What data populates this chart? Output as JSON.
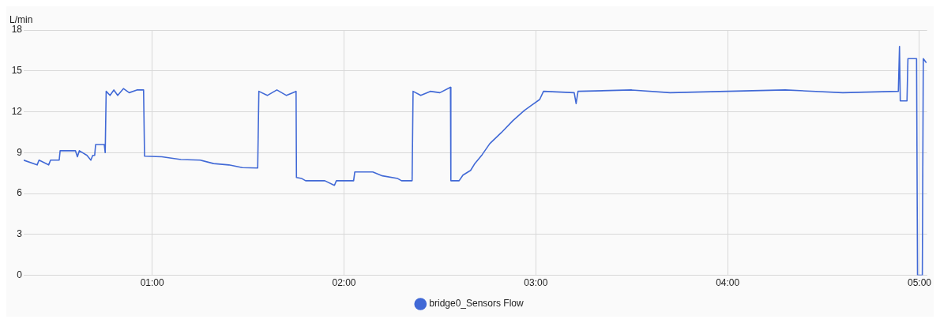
{
  "chart_data": {
    "type": "line",
    "ylabel": "L/min",
    "legend": "bottom",
    "grid": true,
    "marker": "none",
    "line_style": "solid",
    "xlim": [
      0.33,
      5.04
    ],
    "ylim": [
      0,
      18
    ],
    "xticks": [
      {
        "value": 1,
        "label": "01:00"
      },
      {
        "value": 2,
        "label": "02:00"
      },
      {
        "value": 3,
        "label": "03:00"
      },
      {
        "value": 4,
        "label": "04:00"
      },
      {
        "value": 5,
        "label": "05:00"
      }
    ],
    "yticks": [
      0,
      3,
      6,
      9,
      12,
      15,
      18
    ],
    "series": [
      {
        "name": "bridge0_Sensors Flow",
        "color": "#4169d6",
        "x": [
          0.33,
          0.4,
          0.41,
          0.46,
          0.47,
          0.515,
          0.52,
          0.6,
          0.61,
          0.62,
          0.66,
          0.68,
          0.69,
          0.7,
          0.705,
          0.75,
          0.755,
          0.76,
          0.78,
          0.8,
          0.82,
          0.85,
          0.88,
          0.92,
          0.955,
          0.96,
          1.05,
          1.15,
          1.25,
          1.32,
          1.4,
          1.47,
          1.55,
          1.556,
          1.6,
          1.65,
          1.7,
          1.75,
          1.752,
          1.78,
          1.8,
          1.9,
          1.95,
          1.96,
          2.05,
          2.056,
          2.15,
          2.2,
          2.28,
          2.3,
          2.355,
          2.36,
          2.4,
          2.45,
          2.5,
          2.555,
          2.557,
          2.6,
          2.62,
          2.66,
          2.68,
          2.72,
          2.76,
          2.82,
          2.88,
          2.94,
          2.98,
          3.02,
          3.04,
          3.2,
          3.21,
          3.22,
          3.5,
          3.7,
          4.0,
          4.3,
          4.6,
          4.89,
          4.896,
          4.9,
          4.935,
          4.94,
          4.985,
          4.99,
          5.015,
          5.02,
          5.036
        ],
        "values": [
          8.45,
          8.1,
          8.45,
          8.1,
          8.45,
          8.45,
          9.14,
          9.14,
          8.7,
          9.14,
          8.8,
          8.45,
          8.8,
          8.8,
          9.6,
          9.6,
          9.0,
          13.5,
          13.2,
          13.6,
          13.2,
          13.7,
          13.4,
          13.6,
          13.6,
          8.74,
          8.7,
          8.5,
          8.45,
          8.2,
          8.1,
          7.9,
          7.87,
          13.5,
          13.2,
          13.6,
          13.2,
          13.5,
          7.18,
          7.1,
          6.94,
          6.94,
          6.6,
          6.94,
          6.94,
          7.58,
          7.58,
          7.3,
          7.1,
          6.94,
          6.94,
          13.5,
          13.2,
          13.5,
          13.4,
          13.8,
          6.94,
          6.94,
          7.35,
          7.7,
          8.16,
          8.85,
          9.66,
          10.47,
          11.34,
          12.1,
          12.5,
          12.9,
          13.5,
          13.4,
          12.6,
          13.5,
          13.6,
          13.4,
          13.5,
          13.6,
          13.4,
          13.5,
          16.8,
          12.8,
          12.8,
          15.9,
          15.9,
          0,
          0,
          15.9,
          15.6
        ]
      }
    ]
  }
}
